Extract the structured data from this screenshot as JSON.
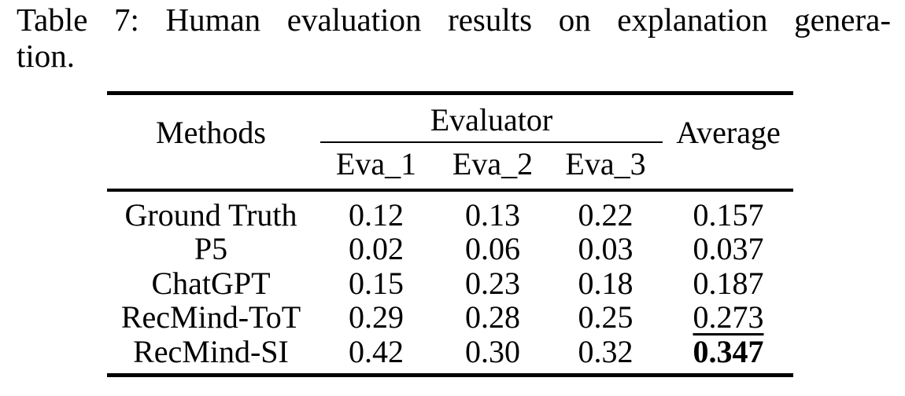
{
  "caption": {
    "line1": "Table 7: Human evaluation results on explanation genera-",
    "line2": "tion."
  },
  "table": {
    "header": {
      "methods_label": "Methods",
      "evaluator_group_label": "Evaluator",
      "sub_columns": [
        "Eva_1",
        "Eva_2",
        "Eva_3"
      ],
      "average_label": "Average"
    },
    "rows": [
      {
        "method": "Ground Truth",
        "eva_1": "0.12",
        "eva_2": "0.13",
        "eva_3": "0.22",
        "average": "0.157",
        "average_emphasis": "none"
      },
      {
        "method": "P5",
        "eva_1": "0.02",
        "eva_2": "0.06",
        "eva_3": "0.03",
        "average": "0.037",
        "average_emphasis": "none"
      },
      {
        "method": "ChatGPT",
        "eva_1": "0.15",
        "eva_2": "0.23",
        "eva_3": "0.18",
        "average": "0.187",
        "average_emphasis": "none"
      },
      {
        "method": "RecMind-ToT",
        "eva_1": "0.29",
        "eva_2": "0.28",
        "eva_3": "0.25",
        "average": "0.273",
        "average_emphasis": "underline"
      },
      {
        "method": "RecMind-SI",
        "eva_1": "0.42",
        "eva_2": "0.30",
        "eva_3": "0.32",
        "average": "0.347",
        "average_emphasis": "bold"
      }
    ]
  },
  "colors": {
    "text": "#000000",
    "background": "#ffffff",
    "rule": "#000000"
  }
}
